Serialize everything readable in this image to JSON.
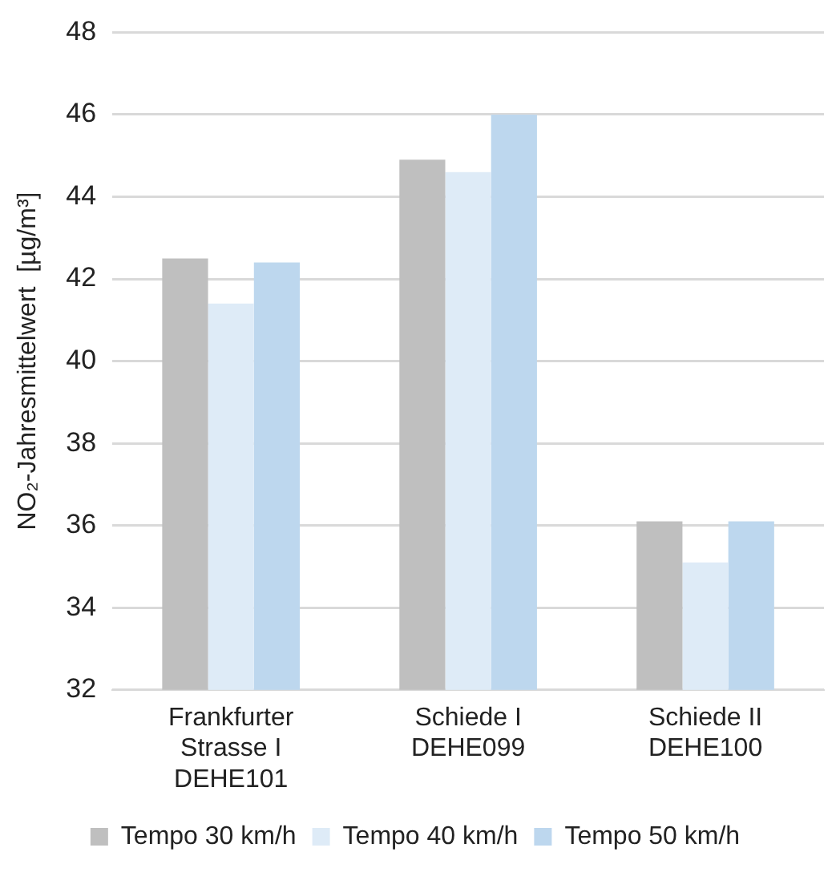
{
  "chart_data": {
    "type": "bar",
    "ylabel": "NO₂-Jahresmittelwert  [µg/m³]",
    "categories": [
      "Frankfurter\nStrasse I\nDEHE101",
      "Schiede I\nDEHE099",
      "Schiede II\nDEHE100"
    ],
    "series": [
      {
        "name": "Tempo 30 km/h",
        "color": "#bfbfbf",
        "values": [
          42.5,
          44.9,
          36.1
        ]
      },
      {
        "name": "Tempo 40 km/h",
        "color": "#deebf7",
        "values": [
          41.4,
          44.6,
          35.1
        ]
      },
      {
        "name": "Tempo 50 km/h",
        "color": "#bdd7ee",
        "values": [
          42.4,
          46.0,
          36.1
        ]
      }
    ],
    "ylim": [
      32,
      48
    ],
    "yticks": [
      32,
      34,
      36,
      38,
      40,
      42,
      44,
      46,
      48
    ],
    "grid": "y",
    "legend": "bottom"
  }
}
